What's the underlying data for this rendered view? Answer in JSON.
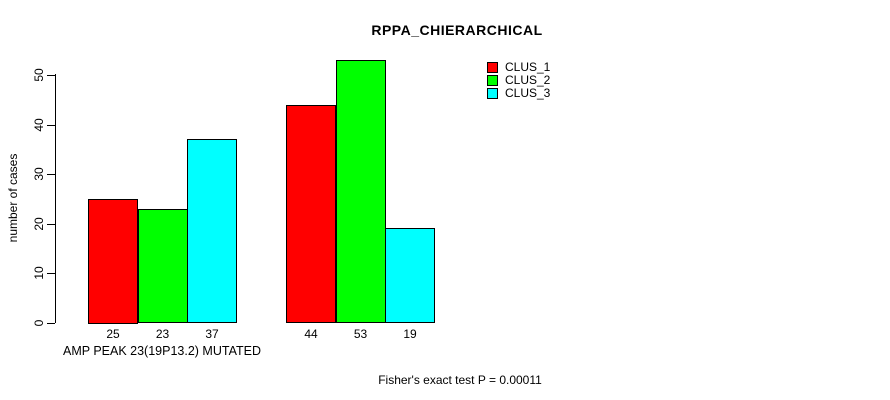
{
  "title": "RPPA_CHIERARCHICAL",
  "footnote": "Fisher's exact test P = 0.00011",
  "legend": {
    "entries": [
      {
        "label": "CLUS_1",
        "color": "#FF0000"
      },
      {
        "label": "CLUS_2",
        "color": "#00FF00"
      },
      {
        "label": "CLUS_3",
        "color": "#00FFFF"
      }
    ]
  },
  "chart_data": {
    "type": "bar",
    "title": "RPPA_CHIERARCHICAL",
    "xlabel": "AMP PEAK 23(19P13.2) MUTATED",
    "ylabel": "number of cases",
    "ylim": [
      0,
      53
    ],
    "yticks": [
      0,
      10,
      20,
      30,
      40,
      50
    ],
    "grid": false,
    "legend_position": "top-right",
    "bar_value_labels_shown": true,
    "categories": [
      "AMP PEAK 23(19P13.2) MUTATED",
      ""
    ],
    "series": [
      {
        "name": "CLUS_1",
        "color": "#FF0000",
        "values": [
          25,
          44
        ]
      },
      {
        "name": "CLUS_2",
        "color": "#00FF00",
        "values": [
          23,
          53
        ]
      },
      {
        "name": "CLUS_3",
        "color": "#00FFFF",
        "values": [
          37,
          19
        ]
      }
    ]
  }
}
